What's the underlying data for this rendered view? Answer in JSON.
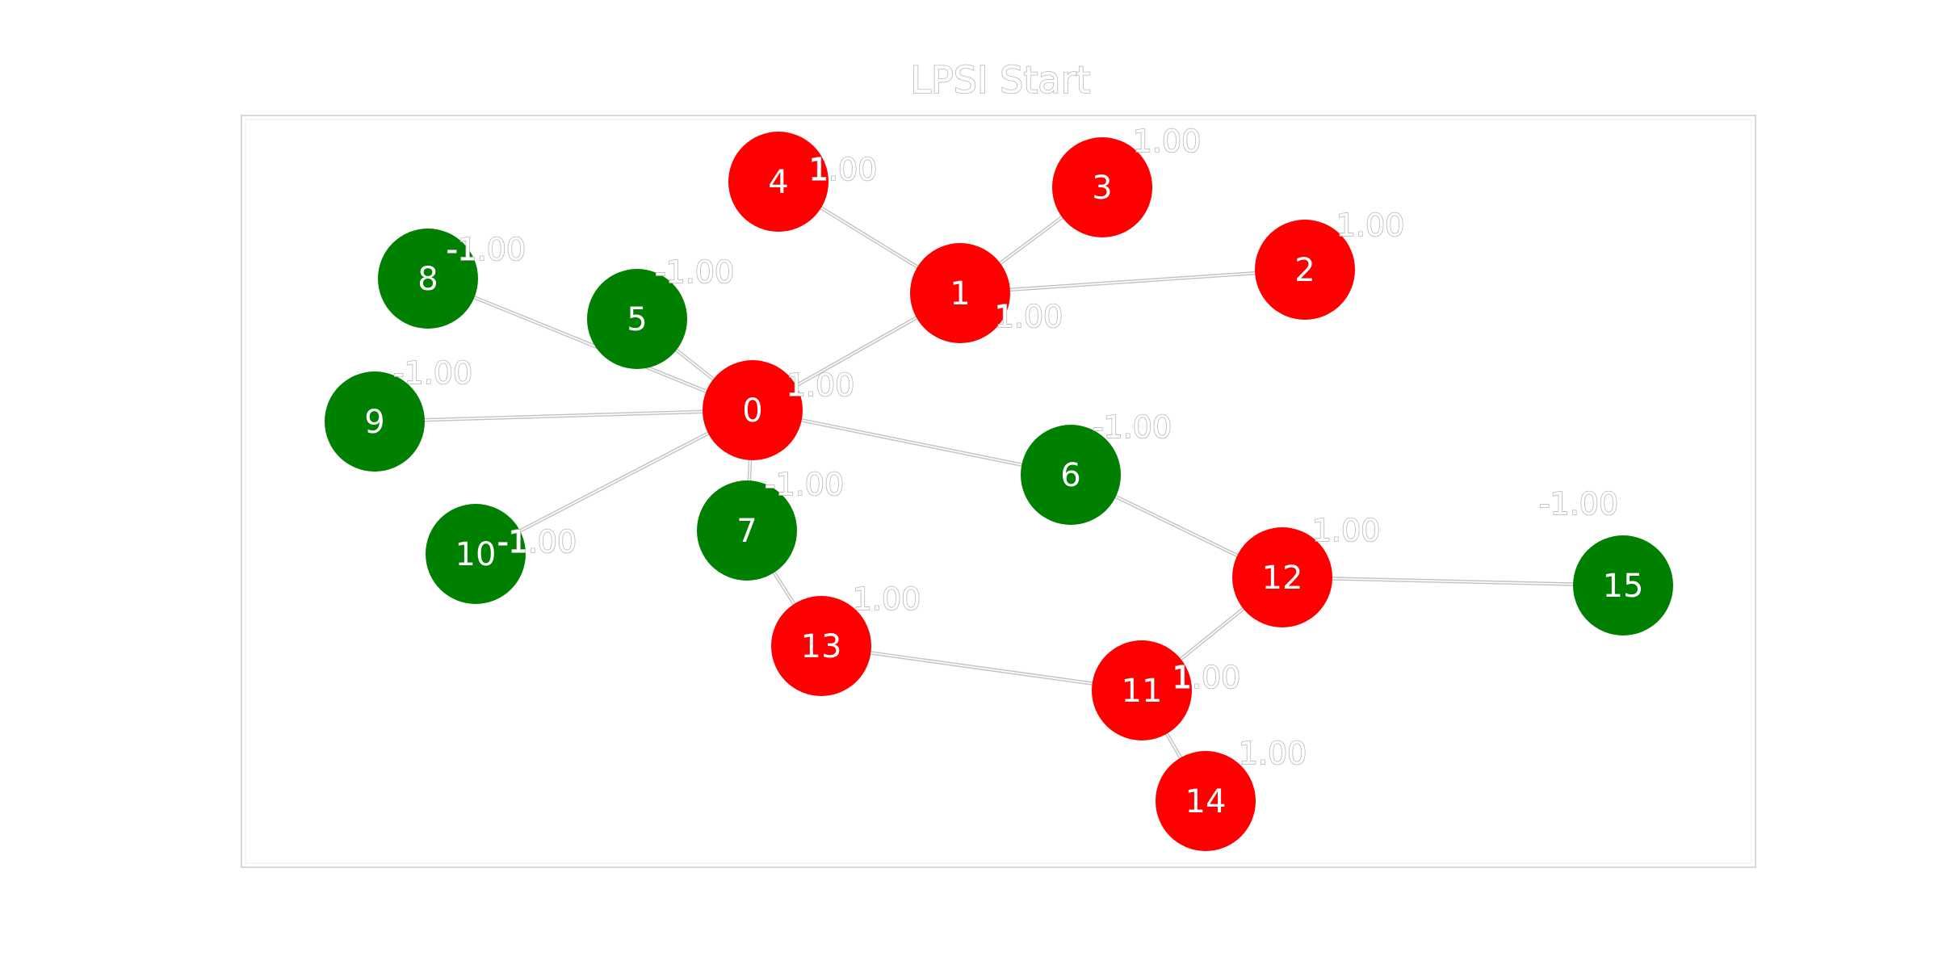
{
  "title": "LPSI Start",
  "colors": {
    "positive": "#ff0000",
    "negative": "#008000",
    "edge": "#c4c4c4",
    "frame": "#d8d8d8",
    "text_outline": "#b8b8b8"
  },
  "nodes": [
    {
      "id": "0",
      "value": "1.00",
      "class": "positive"
    },
    {
      "id": "1",
      "value": "1.00",
      "class": "positive"
    },
    {
      "id": "2",
      "value": "1.00",
      "class": "positive"
    },
    {
      "id": "3",
      "value": "1.00",
      "class": "positive"
    },
    {
      "id": "4",
      "value": "1.00",
      "class": "positive"
    },
    {
      "id": "5",
      "value": "-1.00",
      "class": "negative"
    },
    {
      "id": "6",
      "value": "-1.00",
      "class": "negative"
    },
    {
      "id": "7",
      "value": "-1.00",
      "class": "negative"
    },
    {
      "id": "8",
      "value": "-1.00",
      "class": "negative"
    },
    {
      "id": "9",
      "value": "-1.00",
      "class": "negative"
    },
    {
      "id": "10",
      "value": "-1.00",
      "class": "negative"
    },
    {
      "id": "11",
      "value": "1.00",
      "class": "positive"
    },
    {
      "id": "12",
      "value": "1.00",
      "class": "positive"
    },
    {
      "id": "13",
      "value": "1.00",
      "class": "positive"
    },
    {
      "id": "14",
      "value": "1.00",
      "class": "positive"
    },
    {
      "id": "15",
      "value": "-1.00",
      "class": "negative"
    }
  ],
  "edges": [
    [
      "0",
      "1"
    ],
    [
      "0",
      "5"
    ],
    [
      "0",
      "6"
    ],
    [
      "0",
      "7"
    ],
    [
      "0",
      "8"
    ],
    [
      "0",
      "9"
    ],
    [
      "0",
      "10"
    ],
    [
      "1",
      "2"
    ],
    [
      "1",
      "3"
    ],
    [
      "1",
      "4"
    ],
    [
      "6",
      "12"
    ],
    [
      "7",
      "13"
    ],
    [
      "13",
      "11"
    ],
    [
      "11",
      "12"
    ],
    [
      "11",
      "14"
    ],
    [
      "12",
      "15"
    ]
  ]
}
